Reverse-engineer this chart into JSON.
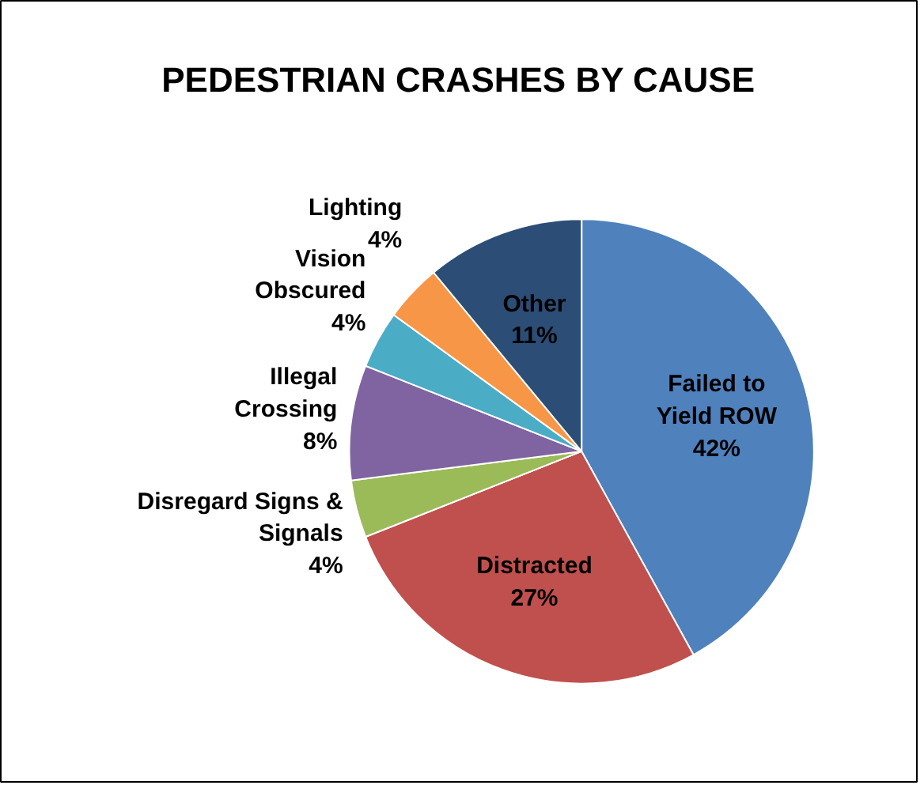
{
  "chart_data": {
    "type": "pie",
    "title": "PEDESTRIAN CRASHES BY CAUSE",
    "categories": [
      "Failed to\nYield ROW",
      "Distracted",
      "Disregard Signs &\nSignals",
      "Illegal\nCrossing",
      "Vision\nObscured",
      "Lighting",
      "Other"
    ],
    "values": [
      42,
      27,
      4,
      8,
      4,
      4,
      11
    ],
    "value_labels": [
      "42%",
      "27%",
      "4%",
      "8%",
      "4%",
      "4%",
      "11%"
    ],
    "colors": [
      "#4f81bd",
      "#c0504d",
      "#9bbb59",
      "#8064a2",
      "#4bacc6",
      "#f79646",
      "#2c4d75"
    ]
  }
}
